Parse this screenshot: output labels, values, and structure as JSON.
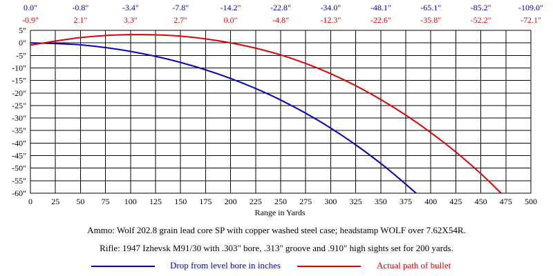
{
  "chart_data": {
    "type": "line",
    "xlabel": "Range in Yards",
    "xlim": [
      0,
      500
    ],
    "ylim": [
      -60,
      5
    ],
    "grid": true,
    "xticks": [
      "0",
      "25",
      "50",
      "75",
      "100",
      "125",
      "150",
      "175",
      "200",
      "225",
      "250",
      "275",
      "300",
      "325",
      "350",
      "375",
      "400",
      "425",
      "450",
      "475",
      "500"
    ],
    "yticks": [
      "5\"",
      "0\"",
      "-5\"",
      "-10\"",
      "-15\"",
      "-20\"",
      "-25\"",
      "-30\"",
      "-35\"",
      "-40\"",
      "-45\"",
      "-50\"",
      "-55\"",
      "-60\""
    ],
    "top_rows": {
      "drop_labels": [
        "0.0\"",
        "-0.8\"",
        "-3.4\"",
        "-7.8\"",
        "-14.2\"",
        "-22.8\"",
        "-34.0\"",
        "-48.1\"",
        "-65.1\"",
        "-85.2\"",
        "-109.0\""
      ],
      "path_labels": [
        "-0.9\"",
        "2.1\"",
        "3.3\"",
        "2.7\"",
        "0.0\"",
        "-4.8\"",
        "-12.3\"",
        "-22.6\"",
        "-35.8\"",
        "-52.2\"",
        "-72.1\""
      ]
    },
    "series": [
      {
        "name": "Drop from level bore in inches",
        "color": "#0000c0",
        "x": [
          0,
          50,
          100,
          150,
          200,
          250,
          300,
          350,
          400
        ],
        "y": [
          0.0,
          -0.8,
          -3.4,
          -7.8,
          -14.2,
          -22.8,
          -34.0,
          -48.1,
          -65.1
        ]
      },
      {
        "name": "Actual path of bullet",
        "color": "#e00000",
        "x": [
          0,
          50,
          100,
          150,
          200,
          250,
          300,
          350,
          400,
          450,
          500
        ],
        "y": [
          -0.9,
          2.1,
          3.3,
          2.7,
          0.0,
          -4.8,
          -12.3,
          -22.6,
          -35.8,
          -52.2,
          -72.1
        ]
      }
    ]
  },
  "captions": {
    "ammo": "Ammo:  Wolf 202.8 grain lead core SP with copper washed steel case; headstamp WOLF over 7.62X54R.",
    "rifle": "Rifle:  1947 Izhevsk M91/30 with .303\" bore, .313\" groove and .910\" high sights set for 200 yards."
  },
  "legend": {
    "drop": "Drop from level bore in inches",
    "path": "Actual path of bullet"
  }
}
